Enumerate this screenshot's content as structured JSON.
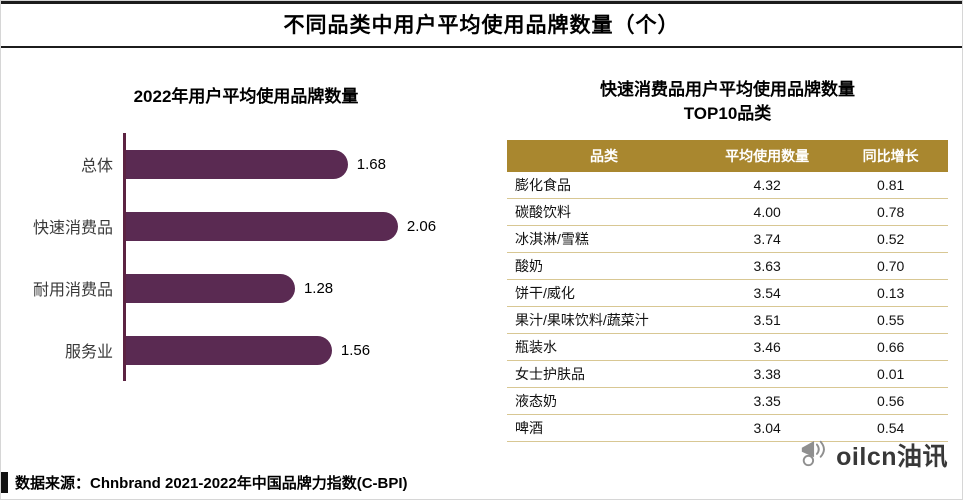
{
  "page": {
    "title": "不同品类中用户平均使用品牌数量（个）",
    "source": "数据来源：Chnbrand 2021-2022年中国品牌力指数(C-BPI)",
    "logo_text": "oilcn油讯"
  },
  "colors": {
    "bar": "#5a2a52",
    "axis": "#5c2342",
    "table_header_bg": "#a9872f",
    "table_row_border": "#d8c793"
  },
  "chart_data": [
    {
      "type": "bar",
      "orientation": "horizontal",
      "title": "2022年用户平均使用品牌数量",
      "categories": [
        "总体",
        "快速消费品",
        "耐用消费品",
        "服务业"
      ],
      "values": [
        1.68,
        2.06,
        1.28,
        1.56
      ],
      "value_labels": [
        "1.68",
        "2.06",
        "1.28",
        "1.56"
      ],
      "xlim": [
        0,
        2.2
      ],
      "grid": false,
      "legend": false
    },
    {
      "type": "table",
      "title_lines": [
        "快速消费品用户平均使用品牌数量",
        "TOP10品类"
      ],
      "columns": [
        "品类",
        "平均使用数量",
        "同比增长"
      ],
      "rows": [
        [
          "膨化食品",
          "4.32",
          "0.81"
        ],
        [
          "碳酸饮料",
          "4.00",
          "0.78"
        ],
        [
          "冰淇淋/雪糕",
          "3.74",
          "0.52"
        ],
        [
          "酸奶",
          "3.63",
          "0.70"
        ],
        [
          "饼干/威化",
          "3.54",
          "0.13"
        ],
        [
          "果汁/果味饮料/蔬菜汁",
          "3.51",
          "0.55"
        ],
        [
          "瓶装水",
          "3.46",
          "0.66"
        ],
        [
          "女士护肤品",
          "3.38",
          "0.01"
        ],
        [
          "液态奶",
          "3.35",
          "0.56"
        ],
        [
          "啤酒",
          "3.04",
          "0.54"
        ]
      ]
    }
  ]
}
